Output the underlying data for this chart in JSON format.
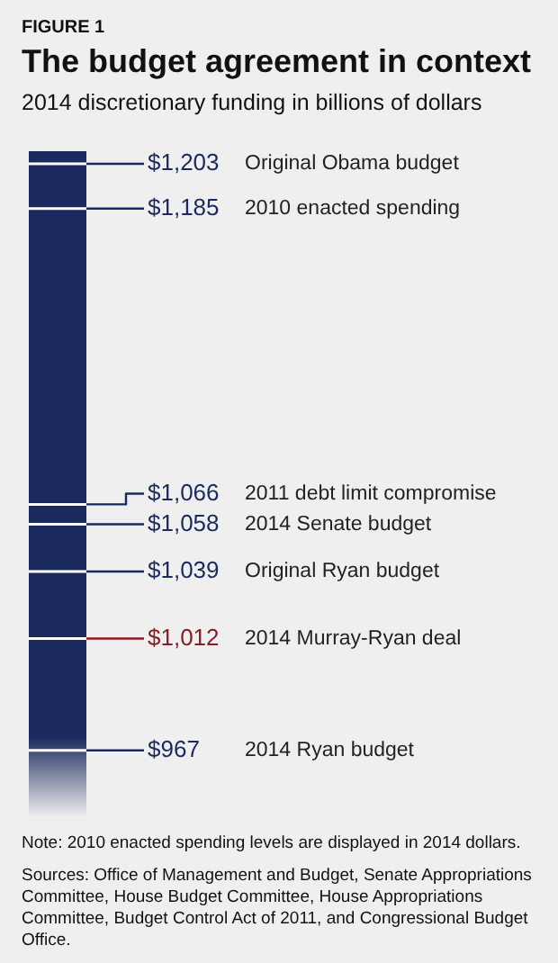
{
  "chart_data": {
    "type": "other",
    "title": "The budget agreement in context",
    "subtitle": "2014 discretionary funding in billions of dollars",
    "annotations": [
      "FIGURE 1",
      "Note: 2010 enacted spending levels are displayed in 2014 dollars.",
      "Sources: Office of Management and Budget, Senate Appropriations Committee, House Budget Committee, House Appropriations Committee, Budget Control Act of 2011, and Congressional Budget Office."
    ],
    "categories": [
      "Original Obama budget",
      "2010 enacted spending",
      "2011 debt limit compromise",
      "2014 Senate budget",
      "Original Ryan budget",
      "2014 Murray-Ryan deal",
      "2014 Ryan budget"
    ],
    "values": [
      1203,
      1185,
      1066,
      1058,
      1039,
      1012,
      967
    ],
    "value_labels": [
      "$1,203",
      "$1,185",
      "$1,066",
      "$1,058",
      "$1,039",
      "$1,012",
      "$967"
    ],
    "colors": [
      "#1b2a5e",
      "#1b2a5e",
      "#1b2a5e",
      "#1b2a5e",
      "#1b2a5e",
      "#8b1c22",
      "#1b2a5e"
    ]
  }
}
